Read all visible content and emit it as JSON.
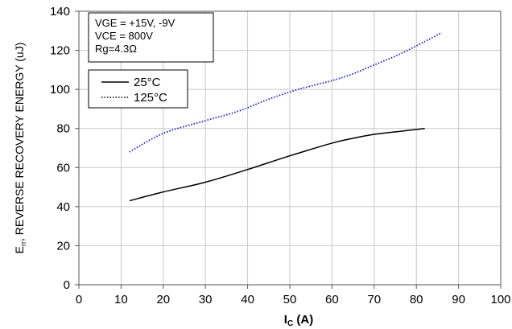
{
  "chart_data": {
    "type": "line",
    "title": "",
    "xlabel": "IC (A)",
    "ylabel": "Err, REVERSE RECOVERY ENERGY (uJ)",
    "xlim": [
      0,
      100
    ],
    "ylim": [
      0,
      140
    ],
    "xticks": [
      "0",
      "10",
      "20",
      "30",
      "40",
      "50",
      "60",
      "70",
      "80",
      "90",
      "100"
    ],
    "yticks": [
      "0",
      "20",
      "40",
      "60",
      "80",
      "100",
      "120",
      "140"
    ],
    "grid": true,
    "conditions": [
      "VGE = +15V, -9V",
      "VCE = 800V",
      "Rg=4.3Ω"
    ],
    "legend_position": "upper-left",
    "series": [
      {
        "name": "25°C",
        "style": "solid",
        "color": "#000000",
        "x": [
          12,
          20,
          30,
          40,
          50,
          60,
          65,
          70,
          76,
          82
        ],
        "y": [
          43,
          47.5,
          52.5,
          59,
          66,
          72.5,
          75,
          77,
          78.5,
          80
        ]
      },
      {
        "name": "125°C",
        "style": "dotted",
        "color": "#1a1acc",
        "x": [
          12,
          20,
          30,
          38,
          45,
          52,
          60,
          65,
          70,
          76,
          82,
          86
        ],
        "y": [
          68,
          77.5,
          84,
          89,
          95,
          100,
          104.5,
          108,
          112.5,
          118,
          124.5,
          129
        ]
      }
    ]
  }
}
